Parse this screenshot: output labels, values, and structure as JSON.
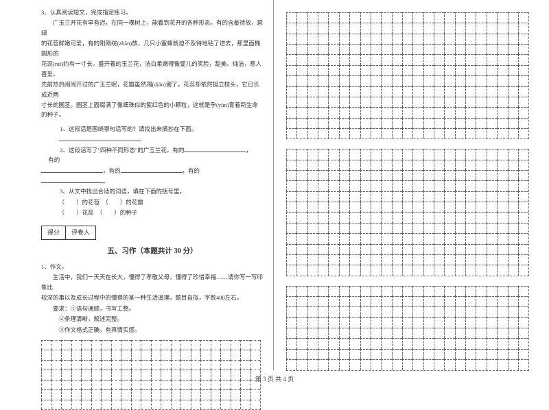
{
  "left": {
    "q3_head": "3、认真阅读短文，完成指定练习。",
    "passage": [
      "广玉兰开花有早有迟，在同一棵树上，能看到花开的各种形态。有的含羞待放，碧绿",
      "的花苞鲜嫩可爱，有的刚刚绽(zhàn)放，几只小蜜蜂就迫不及待地钻了进去，那里面椭圆形的",
      "花蕊(ruǐ)约有一寸长。盛开着的玉兰花，洁白柔嫩得像婴儿的笑脸，甜美、纯洁，惹人喜爱。",
      "先前热热闹闹开过的广玉兰呢，花瓣虽然凋(diāo)谢了，花蕊却依然挺立枝头，它已长成近两",
      "寸长的圆茎。圆茎上面缀满了像细珠似的紫红色的小颗粒，这就是孕(yùn)育着新生命的种子。"
    ],
    "sub1": "1、这段话是围绕哪句话写的？请找出来摘抄在下面。",
    "sub2a": "2、这段话写了\"四种不同形态\"的广玉兰花。有的",
    "sub2b": "，",
    "sub2c": "有的",
    "sub2d": "，有的",
    "sub2e": "，有的",
    "sub2f": "。",
    "sub3": "3、从文中找出合适的词语，填在下面的括号里。",
    "brackets1a": "（　　）的花苞　（　　）的花瓣",
    "brackets1b": "（　　）花蕊　（　　）的种子",
    "score_l": "得分",
    "score_r": "评卷人",
    "section": "五、习作（本题共计 30 分）",
    "comp_head": "1、作文。",
    "comp_body": [
      "生活中，我们一天天在长大，懂得了孝敬父母，懂得了珍惜幸福……请你写一写印象比",
      "较深的事以及成长过程中的懂得的某一种生活道理。题目自拟，字数400左右。"
    ],
    "req_label": "要求：",
    "req1": "①语句通顺，书写工整。",
    "req2": "②条理清晰，叙述完整。",
    "req3": "③作文格式正确，有真情实感。"
  },
  "footer": "第 3 页 共 4 页",
  "grids": {
    "right_cols": 23,
    "right_top_rows": 12,
    "right_mid_rows": 12,
    "right_bot_rows": 8,
    "left_cols": 22,
    "left_rows": 7
  },
  "style": {
    "bg": "#ffffff",
    "text": "#333333",
    "border": "#666666"
  }
}
